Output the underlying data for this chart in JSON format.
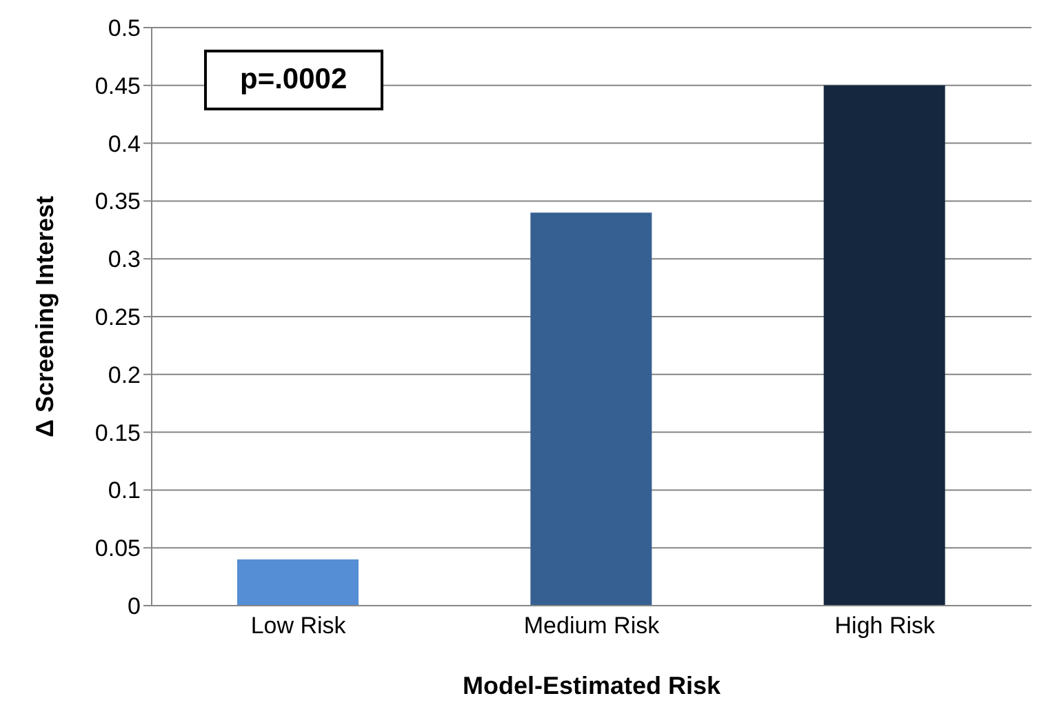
{
  "chart_data": {
    "type": "bar",
    "xlabel": "Model-Estimated Risk",
    "ylabel": "Δ Screening Interest",
    "categories": [
      "Low Risk",
      "Medium Risk",
      "High Risk"
    ],
    "values": [
      0.04,
      0.34,
      0.45
    ],
    "colors": [
      "#558ed5",
      "#376092",
      "#14273f"
    ],
    "ylim": [
      0,
      0.5
    ],
    "yticks": [
      0,
      0.05,
      0.1,
      0.15,
      0.2,
      0.25,
      0.3,
      0.35,
      0.4,
      0.45,
      0.5
    ],
    "grid": "y",
    "legend": false,
    "annotations": [
      "p=.0002"
    ]
  }
}
